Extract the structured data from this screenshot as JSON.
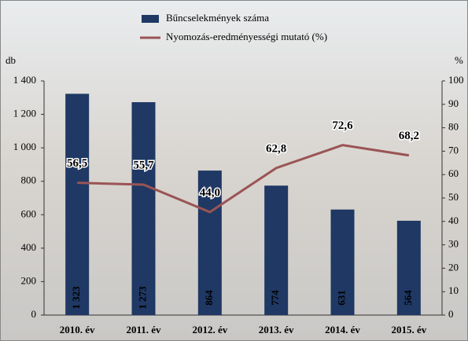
{
  "chart_data": {
    "type": "bar-line",
    "categories": [
      "2010. év",
      "2011. év",
      "2012. év",
      "2013. év",
      "2014. év",
      "2015. év"
    ],
    "y_label": "db",
    "y2_label": "%",
    "series": [
      {
        "name": "Bűncselekmények száma",
        "type": "bar",
        "color": "#1f3864",
        "values": [
          1323,
          1273,
          864,
          774,
          631,
          564
        ],
        "value_labels": [
          "1 323",
          "1 273",
          "864",
          "774",
          "631",
          "564"
        ]
      },
      {
        "name": "Nyomozás-eredményességi mutató (%)",
        "type": "line",
        "axis": "y2",
        "color": "#9a5454",
        "values": [
          56.5,
          55.7,
          44.0,
          62.8,
          72.6,
          68.2
        ],
        "value_labels": [
          "56,5",
          "55,7",
          "44,0",
          "62,8",
          "72,6",
          "68,2"
        ]
      }
    ],
    "ylim": [
      0,
      1400
    ],
    "yticks": [
      0,
      200,
      400,
      600,
      800,
      {
        "value": 1000,
        "label": "1 000"
      },
      {
        "value": 1200,
        "label": "1 200"
      },
      {
        "value": 1400,
        "label": "1 400"
      }
    ],
    "y2lim": [
      0,
      100
    ],
    "y2ticks": [
      0,
      10,
      20,
      30,
      40,
      50,
      60,
      70,
      80,
      90,
      100
    ]
  }
}
